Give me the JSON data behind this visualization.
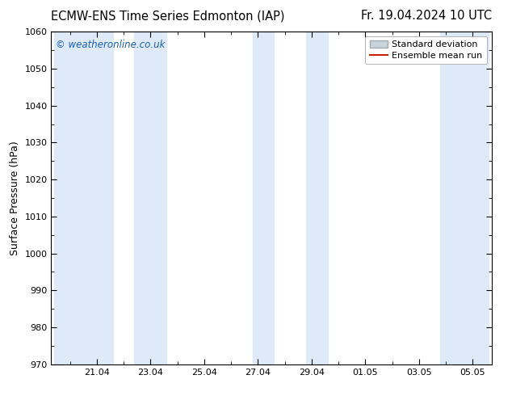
{
  "title_left": "ECMW-ENS Time Series Edmonton (IAP)",
  "title_right": "Fr. 19.04.2024 10 UTC",
  "ylabel": "Surface Pressure (hPa)",
  "ylim": [
    970,
    1060
  ],
  "yticks": [
    970,
    980,
    990,
    1000,
    1010,
    1020,
    1030,
    1040,
    1050,
    1060
  ],
  "x_tick_labels": [
    "21.04",
    "23.04",
    "25.04",
    "27.04",
    "29.04",
    "01.05",
    "03.05",
    "05.05"
  ],
  "watermark": "© weatheronline.co.uk",
  "watermark_color": "#1a5fb4",
  "bg_color": "#ffffff",
  "band_color": "#deeaf7",
  "legend_std_label": "Standard deviation",
  "legend_mean_label": "Ensemble mean run",
  "legend_std_facecolor": "#c8d4dc",
  "legend_std_edgecolor": "#a0aab0",
  "legend_mean_color": "#cc2200",
  "shaded_bands": [
    {
      "x_start": 19.4,
      "x_end": 21.6
    },
    {
      "x_start": 22.4,
      "x_end": 23.6
    },
    {
      "x_start": 26.8,
      "x_end": 27.6
    },
    {
      "x_start": 28.8,
      "x_end": 29.6
    },
    {
      "x_start": 33.8,
      "x_end": 35.6
    }
  ],
  "x_tick_positions": [
    21,
    23,
    25,
    27,
    29,
    31,
    33,
    35
  ],
  "xlim_start": 19.3,
  "xlim_end": 35.7,
  "title_fontsize": 10.5,
  "axis_fontsize": 9,
  "tick_fontsize": 8,
  "legend_fontsize": 8
}
